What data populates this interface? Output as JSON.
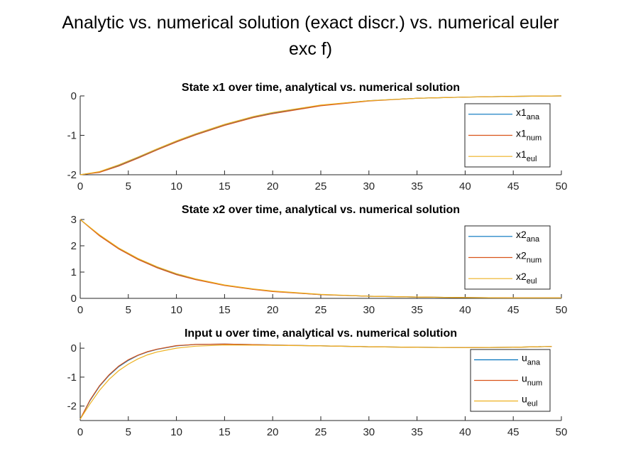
{
  "figure_title_lines": [
    "Analytic vs. numerical solution (exact discr.) vs. numerical euler",
    "exc f)"
  ],
  "colors": {
    "ana": "#0072BD",
    "num": "#D95319",
    "eul": "#EDB120"
  },
  "chart_data": [
    {
      "type": "line",
      "title": "State x1 over time, analytical vs. numerical solution",
      "xlim": [
        0,
        50
      ],
      "ylim": [
        -2,
        0
      ],
      "xticks": [
        0,
        5,
        10,
        15,
        20,
        25,
        30,
        35,
        40,
        45,
        50
      ],
      "yticks": [
        0,
        -1,
        -2
      ],
      "legend_position": "right",
      "series": [
        {
          "name": "x1",
          "sub": "ana",
          "x": [
            0,
            2,
            4,
            6,
            8,
            10,
            12,
            15,
            18,
            20,
            25,
            30,
            35,
            40,
            45,
            50
          ],
          "y": [
            -2,
            -1.93,
            -1.76,
            -1.56,
            -1.35,
            -1.15,
            -0.97,
            -0.73,
            -0.53,
            -0.43,
            -0.24,
            -0.12,
            -0.06,
            -0.03,
            -0.01,
            0
          ]
        },
        {
          "name": "x1",
          "sub": "num",
          "x": [
            0,
            2,
            4,
            6,
            8,
            10,
            12,
            15,
            18,
            20,
            25,
            30,
            35,
            40,
            45,
            50
          ],
          "y": [
            -2,
            -1.94,
            -1.78,
            -1.58,
            -1.37,
            -1.17,
            -0.99,
            -0.75,
            -0.55,
            -0.45,
            -0.25,
            -0.13,
            -0.06,
            -0.03,
            -0.01,
            0
          ]
        },
        {
          "name": "x1",
          "sub": "eul",
          "x": [
            0,
            2,
            4,
            6,
            8,
            10,
            12,
            15,
            18,
            20,
            25,
            30,
            35,
            40,
            45,
            50
          ],
          "y": [
            -2,
            -1.92,
            -1.75,
            -1.55,
            -1.34,
            -1.14,
            -0.96,
            -0.72,
            -0.52,
            -0.42,
            -0.23,
            -0.12,
            -0.06,
            -0.03,
            -0.01,
            0
          ]
        }
      ]
    },
    {
      "type": "line",
      "title": "State x2 over time, analytical vs. numerical solution",
      "xlim": [
        0,
        50
      ],
      "ylim": [
        0,
        3
      ],
      "xticks": [
        0,
        5,
        10,
        15,
        20,
        25,
        30,
        35,
        40,
        45,
        50
      ],
      "yticks": [
        3,
        2,
        1,
        0
      ],
      "legend_position": "right",
      "series": [
        {
          "name": "x2",
          "sub": "ana",
          "x": [
            0,
            2,
            4,
            6,
            8,
            10,
            12,
            15,
            18,
            20,
            25,
            30,
            35,
            40,
            45,
            50
          ],
          "y": [
            3,
            2.4,
            1.9,
            1.5,
            1.18,
            0.92,
            0.72,
            0.5,
            0.35,
            0.27,
            0.14,
            0.08,
            0.05,
            0.03,
            0.02,
            0.02
          ]
        },
        {
          "name": "x2",
          "sub": "num",
          "x": [
            0,
            2,
            4,
            6,
            8,
            10,
            12,
            15,
            18,
            20,
            25,
            30,
            35,
            40,
            45,
            50
          ],
          "y": [
            3,
            2.38,
            1.88,
            1.48,
            1.16,
            0.9,
            0.71,
            0.49,
            0.34,
            0.26,
            0.14,
            0.08,
            0.05,
            0.03,
            0.02,
            0.02
          ]
        },
        {
          "name": "x2",
          "sub": "eul",
          "x": [
            0,
            2,
            4,
            6,
            8,
            10,
            12,
            15,
            18,
            20,
            25,
            30,
            35,
            40,
            45,
            50
          ],
          "y": [
            3,
            2.42,
            1.92,
            1.52,
            1.2,
            0.94,
            0.74,
            0.51,
            0.36,
            0.28,
            0.15,
            0.08,
            0.05,
            0.03,
            0.02,
            0.02
          ]
        }
      ]
    },
    {
      "type": "line",
      "title": "Input u over time, analytical vs. numerical solution",
      "xlim": [
        0,
        50
      ],
      "ylim": [
        -2.5,
        0.2
      ],
      "xticks": [
        0,
        5,
        10,
        15,
        20,
        25,
        30,
        35,
        40,
        45,
        50
      ],
      "yticks": [
        0,
        -1,
        -2
      ],
      "legend_position": "right",
      "series": [
        {
          "name": "u",
          "sub": "ana",
          "x": [
            0,
            1,
            2,
            3,
            4,
            5,
            6,
            7,
            8,
            10,
            12,
            15,
            20,
            25,
            30,
            35,
            40,
            45,
            49
          ],
          "y": [
            -2.45,
            -1.82,
            -1.32,
            -0.94,
            -0.64,
            -0.42,
            -0.25,
            -0.13,
            -0.04,
            0.08,
            0.13,
            0.14,
            0.11,
            0.08,
            0.05,
            0.03,
            0.02,
            0.03,
            0.06
          ]
        },
        {
          "name": "u",
          "sub": "num",
          "x": [
            0,
            1,
            2,
            3,
            4,
            5,
            6,
            7,
            8,
            10,
            12,
            15,
            20,
            25,
            30,
            35,
            40,
            45,
            49
          ],
          "y": [
            -2.45,
            -1.8,
            -1.3,
            -0.92,
            -0.62,
            -0.4,
            -0.24,
            -0.12,
            -0.03,
            0.09,
            0.13,
            0.14,
            0.11,
            0.08,
            0.05,
            0.03,
            0.02,
            0.03,
            0.06
          ]
        },
        {
          "name": "u",
          "sub": "eul",
          "x": [
            0,
            1,
            2,
            3,
            4,
            5,
            6,
            7,
            8,
            10,
            12,
            15,
            20,
            25,
            30,
            35,
            40,
            45,
            49
          ],
          "y": [
            -2.45,
            -1.93,
            -1.46,
            -1.08,
            -0.78,
            -0.55,
            -0.37,
            -0.23,
            -0.13,
            0.0,
            0.07,
            0.11,
            0.1,
            0.08,
            0.05,
            0.03,
            0.02,
            0.03,
            0.06
          ]
        }
      ]
    }
  ]
}
